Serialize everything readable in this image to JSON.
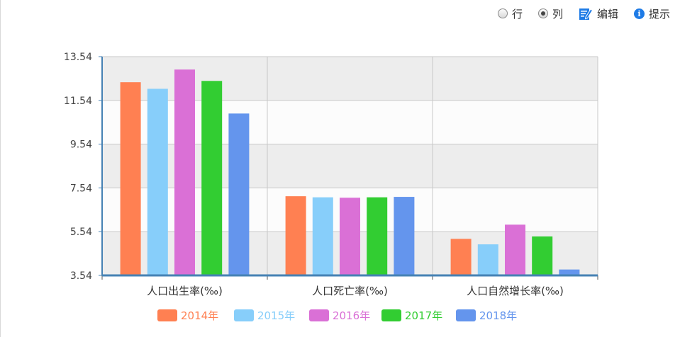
{
  "toolbar": {
    "row_label": "行",
    "column_label": "列",
    "edit_label": "编辑",
    "tips_label": "提示",
    "selected_mode": "column"
  },
  "colors": {
    "series": [
      "#ff8052",
      "#87cefa",
      "#da70d6",
      "#32cd32",
      "#6495ed"
    ],
    "axis": "#4682b4",
    "band_dark": "#ededed",
    "band_light": "#fcfcfc",
    "grid": "#c8c8c8"
  },
  "chart_data": {
    "type": "bar",
    "categories": [
      "人口出生率(‰)",
      "人口死亡率(‰)",
      "人口自然增长率(‰)"
    ],
    "series": [
      {
        "name": "2014年",
        "values": [
          12.37,
          7.16,
          5.21
        ]
      },
      {
        "name": "2015年",
        "values": [
          12.07,
          7.11,
          4.96
        ]
      },
      {
        "name": "2016年",
        "values": [
          12.95,
          7.09,
          5.86
        ]
      },
      {
        "name": "2017年",
        "values": [
          12.43,
          7.11,
          5.32
        ]
      },
      {
        "name": "2018年",
        "values": [
          10.94,
          7.13,
          3.81
        ]
      }
    ],
    "yticks": [
      "3.54",
      "5.54",
      "7.54",
      "9.54",
      "11.54",
      "13.54"
    ],
    "ylim": [
      3.54,
      13.54
    ],
    "grid": true,
    "legend_position": "bottom"
  }
}
